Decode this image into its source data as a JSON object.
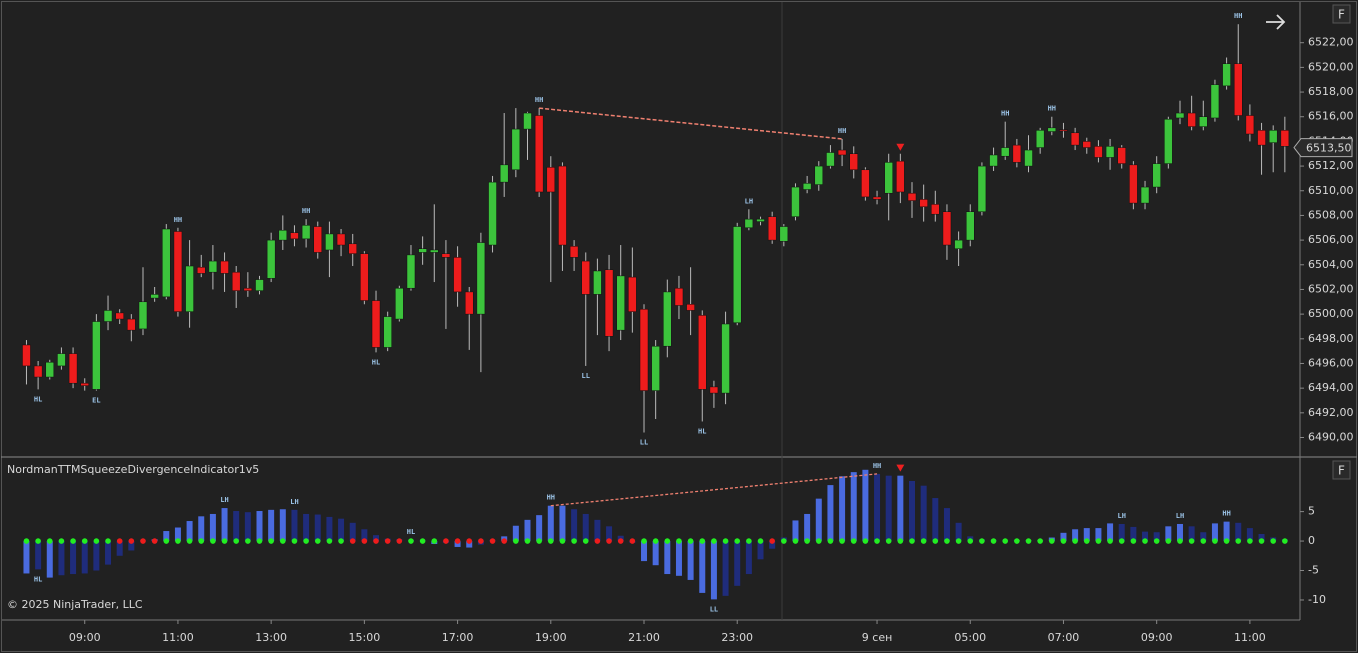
{
  "chart_data": [
    {
      "type": "candlestick",
      "xlim": [
        -2.1,
        109.3
      ],
      "ylim": [
        6488.5,
        6525.3
      ],
      "yticks": [
        {
          "value": 6490,
          "label": "6490,00"
        },
        {
          "value": 6492,
          "label": "6492,00"
        },
        {
          "value": 6494,
          "label": "6494,00"
        },
        {
          "value": 6496,
          "label": "6496,00"
        },
        {
          "value": 6498,
          "label": "6498,00"
        },
        {
          "value": 6500,
          "label": "6500,00"
        },
        {
          "value": 6502,
          "label": "6502,00"
        },
        {
          "value": 6504,
          "label": "6504,00"
        },
        {
          "value": 6506,
          "label": "6506,00"
        },
        {
          "value": 6508,
          "label": "6508,00"
        },
        {
          "value": 6510,
          "label": "6510,00"
        },
        {
          "value": 6512,
          "label": "6512,00"
        },
        {
          "value": 6514,
          "label": "6514,00"
        },
        {
          "value": 6516,
          "label": "6516,00"
        },
        {
          "value": 6518,
          "label": "6518,00"
        },
        {
          "value": 6520,
          "label": "6520,00"
        },
        {
          "value": 6522,
          "label": "6522,00"
        }
      ],
      "up_color": "#3cc43c",
      "down_color": "#ee1c1c",
      "open": [
        6497.5,
        6495.8,
        6494.9,
        6495.8,
        6496.8,
        6494.4,
        6493.9,
        6499.4,
        6500.1,
        6499.6,
        6498.8,
        6501.3,
        6501.4,
        6506.7,
        6500.2,
        6503.8,
        6503.4,
        6504.3,
        6503.4,
        6502.1,
        6501.9,
        6502.9,
        6506,
        6506.6,
        6506.1,
        6507.1,
        6505.2,
        6506.5,
        6505.7,
        6504.9,
        6501.1,
        6497.3,
        6499.6,
        6502.1,
        6505,
        6505,
        6504.9,
        6504.6,
        6501.8,
        6500,
        6505.6,
        6510.7,
        6511.7,
        6515,
        6516.1,
        6511.9,
        6512,
        6505.5,
        6504.3,
        6501.6,
        6503.6,
        6498.7,
        6503,
        6500.4,
        6493.8,
        6497.4,
        6502.1,
        6500.8,
        6499.9,
        6494.1,
        6493.6,
        6499.3,
        6507,
        6507.5,
        6507.9,
        6505.9,
        6507.9,
        6510.1,
        6510.5,
        6512,
        6513.3,
        6513,
        6511.7,
        6509.5,
        6509.8,
        6512.4,
        6509.8,
        6509.3,
        6508.9,
        6508.3,
        6505.3,
        6506,
        6508.3,
        6512,
        6512.8,
        6513.7,
        6512,
        6513.5,
        6514.8,
        6514.95,
        6514.7,
        6514,
        6513.6,
        6512.7,
        6513.5,
        6512.1,
        6509,
        6510.3,
        6512.2,
        6515.9,
        6516.3,
        6515.2,
        6515.9,
        6518.5,
        6520.3,
        6516.1,
        6514.9,
        6513.9,
        6514.9
      ],
      "high": [
        6497.9,
        6496.2,
        6496.3,
        6497.3,
        6497.3,
        6494.8,
        6500,
        6501.5,
        6500.4,
        6500,
        6503.8,
        6502.2,
        6507.3,
        6507,
        6506,
        6504.8,
        6505.6,
        6505,
        6503.9,
        6503.4,
        6503.1,
        6506.6,
        6508,
        6507.2,
        6507.7,
        6507.5,
        6507.5,
        6506.9,
        6506.5,
        6505.1,
        6501.9,
        6500.2,
        6502.3,
        6505.6,
        6506.3,
        6508.9,
        6506,
        6505.5,
        6502.2,
        6506.6,
        6511.2,
        6516.3,
        6516.7,
        6516.4,
        6516.7,
        6512.8,
        6512.3,
        6506,
        6505,
        6504.5,
        6504.8,
        6505.6,
        6505.4,
        6500.8,
        6497.9,
        6502.8,
        6503.1,
        6503.8,
        6500.3,
        6494.6,
        6500.2,
        6507.4,
        6508.5,
        6507.9,
        6508.3,
        6507.3,
        6510.6,
        6511.2,
        6512.4,
        6513.7,
        6514.2,
        6513.6,
        6511.9,
        6510,
        6513,
        6513,
        6510.7,
        6510.5,
        6510,
        6508.9,
        6506.7,
        6508.9,
        6512.3,
        6513.5,
        6515.6,
        6514.2,
        6514.5,
        6515.1,
        6516,
        6515.5,
        6515.1,
        6514.3,
        6514.1,
        6514.2,
        6513.7,
        6512.4,
        6510.8,
        6512.8,
        6516,
        6517.3,
        6517.7,
        6517.3,
        6519,
        6520.8,
        6523.5,
        6517,
        6515.5,
        6515.3,
        6516
      ],
      "low": [
        6494.3,
        6493.9,
        6494.7,
        6495.5,
        6494,
        6493.8,
        6493.8,
        6498.7,
        6499.2,
        6497.8,
        6498.3,
        6501,
        6501.2,
        6499.8,
        6498.9,
        6503,
        6502,
        6501.8,
        6500.5,
        6501.4,
        6501.6,
        6502.6,
        6505.2,
        6505.5,
        6505.4,
        6504.5,
        6503,
        6504.7,
        6503.9,
        6500.8,
        6496.9,
        6497,
        6499.4,
        6501.9,
        6504,
        6502.6,
        6498.8,
        6500.6,
        6497.1,
        6495.3,
        6505,
        6509.5,
        6511.1,
        6512.5,
        6509.5,
        6502.6,
        6503.5,
        6503.5,
        6495.8,
        6498.3,
        6497,
        6497.9,
        6498.5,
        6490.4,
        6491.5,
        6496.5,
        6499.6,
        6498.3,
        6491.3,
        6492.4,
        6492.7,
        6499.1,
        6506.8,
        6507.2,
        6505.7,
        6505.5,
        6507.6,
        6509.8,
        6510,
        6511.8,
        6512,
        6511,
        6509.2,
        6508.9,
        6507.6,
        6509,
        6507.8,
        6507.5,
        6507.5,
        6504.4,
        6503.9,
        6505.5,
        6508,
        6511.6,
        6512.5,
        6511.9,
        6511.5,
        6513,
        6514.5,
        6514.3,
        6513.3,
        6513,
        6512.3,
        6511.7,
        6511.8,
        6508.5,
        6508.5,
        6509.8,
        6511.8,
        6515.4,
        6514.9,
        6514.9,
        6515.6,
        6518.2,
        6515.7,
        6514,
        6511.3,
        6511.5,
        6511.5
      ],
      "close": [
        6495.8,
        6494.9,
        6496.1,
        6496.8,
        6494.4,
        6494.2,
        6499.4,
        6500.3,
        6499.6,
        6498.7,
        6501,
        6501.6,
        6506.9,
        6500.2,
        6503.9,
        6503.3,
        6504.3,
        6503.3,
        6501.9,
        6501.9,
        6502.8,
        6506,
        6506.8,
        6506.1,
        6507.2,
        6505,
        6506.5,
        6505.6,
        6504.9,
        6501.1,
        6497.3,
        6499.8,
        6502.1,
        6504.8,
        6505.3,
        6505.2,
        6504.6,
        6501.8,
        6500,
        6505.8,
        6510.7,
        6512.1,
        6515,
        6516.3,
        6509.9,
        6509.9,
        6505.6,
        6504.6,
        6501.6,
        6503.5,
        6498.2,
        6503.1,
        6500.2,
        6493.8,
        6497.4,
        6501.8,
        6500.7,
        6500.3,
        6493.9,
        6493.6,
        6499.2,
        6507.1,
        6507.7,
        6507.7,
        6506,
        6507.1,
        6510.3,
        6510.6,
        6512,
        6513.1,
        6512.9,
        6511.7,
        6509.5,
        6509.3,
        6512.3,
        6509.9,
        6509.2,
        6508.7,
        6508.1,
        6505.6,
        6506,
        6508.3,
        6512,
        6512.9,
        6513.5,
        6512.3,
        6513.3,
        6514.9,
        6515.1,
        6514.85,
        6513.7,
        6513.5,
        6512.7,
        6513.6,
        6512.2,
        6509,
        6510.3,
        6512.2,
        6515.8,
        6516.3,
        6515.2,
        6516,
        6518.6,
        6520.3,
        6516.1,
        6514.6,
        6513.7,
        6514.9,
        6513.6
      ],
      "swing_labels": [
        {
          "x": 1,
          "text": "HL",
          "side": "below"
        },
        {
          "x": 6,
          "text": "EL",
          "side": "below"
        },
        {
          "x": 13,
          "text": "HH",
          "side": "above"
        },
        {
          "x": 24,
          "text": "HH",
          "side": "above"
        },
        {
          "x": 30,
          "text": "HL",
          "side": "below"
        },
        {
          "x": 44,
          "text": "HH",
          "side": "above"
        },
        {
          "x": 48,
          "text": "LL",
          "side": "below"
        },
        {
          "x": 53,
          "text": "LL",
          "side": "below"
        },
        {
          "x": 58,
          "text": "HL",
          "side": "below"
        },
        {
          "x": 62,
          "text": "LH",
          "side": "above"
        },
        {
          "x": 70,
          "text": "HH",
          "side": "above"
        },
        {
          "x": 84,
          "text": "HH",
          "side": "above"
        },
        {
          "x": 88,
          "text": "HH",
          "side": "above"
        },
        {
          "x": 104,
          "text": "HH",
          "side": "above"
        }
      ],
      "divergence": {
        "from": 44,
        "to": 70,
        "color": "#f08070"
      },
      "signals": [
        75
      ],
      "signal_color": "#ee2020",
      "last_price": {
        "value": 6513.5,
        "label": "6513,50"
      }
    },
    {
      "type": "histogram",
      "title": "NordmanTTMSqueezeDivergenceIndicator1v5",
      "copyright": "© 2025 NinjaTrader, LLC",
      "xlim": [
        -2.1,
        109.3
      ],
      "ylim": [
        -13.4,
        14.1
      ],
      "yticks": [
        -10,
        -5,
        0,
        5
      ],
      "xticks": [
        {
          "value": 5,
          "label": "09:00"
        },
        {
          "value": 13,
          "label": "11:00"
        },
        {
          "value": 21,
          "label": "13:00"
        },
        {
          "value": 29,
          "label": "15:00"
        },
        {
          "value": 37,
          "label": "17:00"
        },
        {
          "value": 45,
          "label": "19:00"
        },
        {
          "value": 53,
          "label": "21:00"
        },
        {
          "value": 61,
          "label": "23:00"
        },
        {
          "value": 73,
          "label": "9 сен"
        },
        {
          "value": 81,
          "label": "05:00"
        },
        {
          "value": 89,
          "label": "07:00"
        },
        {
          "value": 97,
          "label": "09:00"
        },
        {
          "value": 105,
          "label": "11:00"
        }
      ],
      "rising_color": "#4a6be0",
      "falling_color": "#1f2c7c",
      "squeeze_on_color": "#ee1c1c",
      "squeeze_off_color": "#22ee22",
      "values": [
        -5.5,
        -4.8,
        -6.2,
        -5.8,
        -5.6,
        -5.5,
        -5,
        -4,
        -2.5,
        -1.6,
        0.1,
        0.3,
        1.7,
        2.3,
        3.4,
        4.2,
        4.6,
        5.6,
        5.1,
        4.9,
        5.1,
        5.3,
        5.4,
        5.3,
        4.6,
        4.5,
        4.1,
        3.8,
        3.1,
        2,
        1,
        0.4,
        0.3,
        0.2,
        0.1,
        -0.5,
        -0.3,
        -1,
        -1.1,
        -0.6,
        0.2,
        0.8,
        2.6,
        3.6,
        4.4,
        6,
        6,
        5.4,
        4.6,
        3.6,
        2.5,
        0.9,
        -0.3,
        -3.4,
        -4.1,
        -5.6,
        -5.9,
        -6.6,
        -8.8,
        -9.9,
        -9.3,
        -7.6,
        -5.6,
        -3.1,
        -1.3,
        0.6,
        3.5,
        4.6,
        7.2,
        9.5,
        11,
        11.7,
        12.1,
        11.4,
        11.1,
        11.1,
        10.2,
        9.4,
        7.3,
        5.6,
        3.1,
        0.8,
        0.3,
        0.2,
        0.1,
        0.1,
        0.1,
        0.1,
        0.6,
        1.4,
        2,
        2.2,
        2.2,
        3,
        2.9,
        2.4,
        1.6,
        1.5,
        2.5,
        2.9,
        2.5,
        1.5,
        3,
        3.3,
        3.1,
        2.2,
        1.2,
        0.6,
        0.3
      ],
      "squeeze": [
        false,
        false,
        false,
        false,
        false,
        false,
        false,
        false,
        true,
        true,
        true,
        true,
        false,
        false,
        false,
        false,
        false,
        false,
        false,
        false,
        false,
        false,
        false,
        false,
        false,
        false,
        false,
        false,
        true,
        true,
        true,
        true,
        true,
        false,
        false,
        false,
        true,
        true,
        true,
        true,
        true,
        true,
        false,
        false,
        false,
        false,
        false,
        false,
        false,
        true,
        true,
        true,
        true,
        false,
        false,
        false,
        false,
        false,
        false,
        false,
        false,
        false,
        false,
        false,
        true,
        false,
        false,
        false,
        false,
        false,
        false,
        false,
        false,
        false,
        false,
        false,
        false,
        false,
        false,
        false,
        false,
        false,
        false,
        false,
        false,
        false,
        false,
        false,
        false,
        false,
        false,
        false,
        false,
        false,
        false,
        false,
        false,
        false,
        false,
        false,
        false,
        false,
        false,
        false,
        false,
        false,
        false,
        false,
        false
      ],
      "swing_labels": [
        {
          "x": 1,
          "text": "HL"
        },
        {
          "x": 17,
          "text": "LH"
        },
        {
          "x": 23,
          "text": "LH"
        },
        {
          "x": 33,
          "text": "HL"
        },
        {
          "x": 45,
          "text": "HH"
        },
        {
          "x": 59,
          "text": "LL"
        },
        {
          "x": 73,
          "text": "HH"
        },
        {
          "x": 94,
          "text": "LH"
        },
        {
          "x": 99,
          "text": "LH"
        },
        {
          "x": 103,
          "text": "HH"
        }
      ],
      "divergence": {
        "from": 45,
        "to": 73,
        "color": "#f08070"
      },
      "signals": [
        75
      ],
      "signal_color": "#ee2020"
    }
  ]
}
